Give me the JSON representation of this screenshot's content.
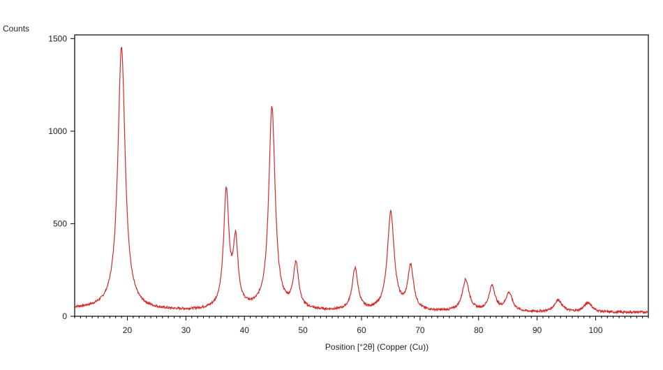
{
  "chart_data": {
    "type": "line",
    "title": "",
    "ylabel": "Counts",
    "xlabel": "Position [°2θ] (Copper (Cu))",
    "xlim": [
      11,
      109
    ],
    "ylim": [
      0,
      1520
    ],
    "grid": false,
    "xticks": [
      20,
      30,
      40,
      50,
      60,
      70,
      80,
      90,
      100
    ],
    "yticks": [
      0,
      500,
      1000,
      1500
    ],
    "line_color": "#d42a2a",
    "series": [
      {
        "background": [
          [
            11,
            40
          ],
          [
            20,
            35
          ],
          [
            25,
            30
          ],
          [
            30,
            28
          ],
          [
            35,
            30
          ],
          [
            40,
            33
          ],
          [
            45,
            30
          ],
          [
            50,
            28
          ],
          [
            55,
            25
          ],
          [
            60,
            24
          ],
          [
            65,
            24
          ],
          [
            70,
            22
          ],
          [
            75,
            22
          ],
          [
            80,
            22
          ],
          [
            85,
            20
          ],
          [
            90,
            20
          ],
          [
            95,
            20
          ],
          [
            100,
            20
          ],
          [
            105,
            20
          ],
          [
            109,
            22
          ]
        ],
        "peaks": [
          {
            "x": 19.0,
            "height": 1420,
            "width": 0.75
          },
          {
            "x": 36.9,
            "height": 625,
            "width": 0.55
          },
          {
            "x": 38.5,
            "height": 345,
            "width": 0.5
          },
          {
            "x": 44.7,
            "height": 1095,
            "width": 0.65
          },
          {
            "x": 48.8,
            "height": 238,
            "width": 0.55
          },
          {
            "x": 58.9,
            "height": 225,
            "width": 0.6
          },
          {
            "x": 65.0,
            "height": 530,
            "width": 0.7
          },
          {
            "x": 68.4,
            "height": 235,
            "width": 0.6
          },
          {
            "x": 77.8,
            "height": 170,
            "width": 0.7
          },
          {
            "x": 82.3,
            "height": 135,
            "width": 0.65
          },
          {
            "x": 85.2,
            "height": 100,
            "width": 0.7
          },
          {
            "x": 93.6,
            "height": 65,
            "width": 0.8
          },
          {
            "x": 98.7,
            "height": 52,
            "width": 0.8
          }
        ]
      }
    ]
  }
}
